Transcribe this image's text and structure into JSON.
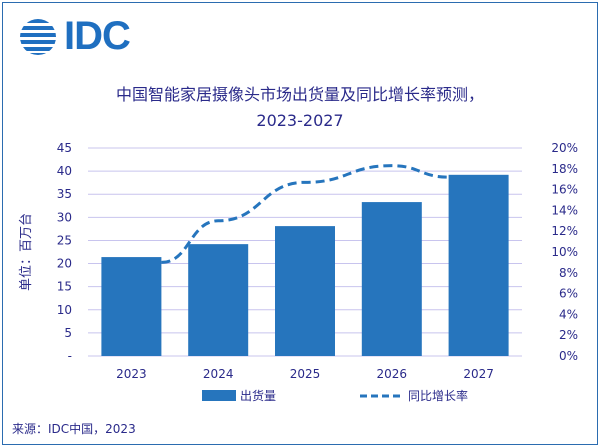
{
  "logo_text": "IDC",
  "source": "来源：IDC中国，2023",
  "chart_data": {
    "type": "bar+line",
    "title_line1": "中国智能家居摄像头市场出货量及同比增长率预测，",
    "title_line2": "2023-2027",
    "ylabel": "单位：百万台",
    "categories": [
      "2023",
      "2024",
      "2025",
      "2026",
      "2027"
    ],
    "ylim": [
      0,
      45
    ],
    "y_ticks": [
      "-",
      "5",
      "10",
      "15",
      "20",
      "25",
      "30",
      "35",
      "40",
      "45"
    ],
    "y2lim": [
      0,
      20
    ],
    "y2_ticks": [
      "0%",
      "2%",
      "4%",
      "6%",
      "8%",
      "10%",
      "12%",
      "14%",
      "16%",
      "18%",
      "20%"
    ],
    "series": [
      {
        "name": "出货量",
        "type": "bar",
        "axis": "left",
        "color": "#2675bd",
        "values": [
          21.4,
          24.2,
          28.1,
          33.3,
          39.2
        ]
      },
      {
        "name": "同比增长率",
        "type": "line",
        "style": "dashed",
        "axis": "right",
        "color": "#2675bd",
        "values": [
          9.0,
          13.0,
          16.7,
          18.3,
          17.2
        ]
      }
    ],
    "grid": true,
    "legend_placement": "bottom",
    "text_color": "#2a2a8a",
    "grid_color": "#c8c4ee"
  }
}
